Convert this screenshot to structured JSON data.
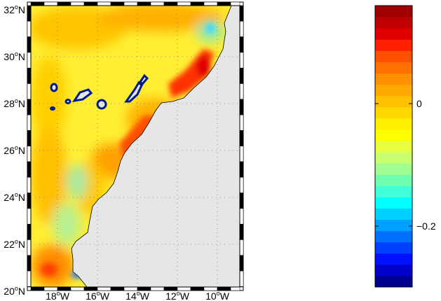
{
  "map": {
    "lat_labels": [
      {
        "deg": "32",
        "sup": "o",
        "hemi": "N"
      },
      {
        "deg": "30",
        "sup": "o",
        "hemi": "N"
      },
      {
        "deg": "28",
        "sup": "o",
        "hemi": "N"
      },
      {
        "deg": "26",
        "sup": "o",
        "hemi": "N"
      },
      {
        "deg": "24",
        "sup": "o",
        "hemi": "N"
      },
      {
        "deg": "22",
        "sup": "o",
        "hemi": "N"
      },
      {
        "deg": "20",
        "sup": "o",
        "hemi": "N"
      }
    ],
    "lon_labels": [
      {
        "deg": "18",
        "sup": "o",
        "hemi": "W"
      },
      {
        "deg": "16",
        "sup": "o",
        "hemi": "W"
      },
      {
        "deg": "14",
        "sup": "o",
        "hemi": "W"
      },
      {
        "deg": "12",
        "sup": "o",
        "hemi": "W"
      },
      {
        "deg": "10",
        "sup": "o",
        "hemi": "W"
      }
    ],
    "land_color": "#e6e6e6",
    "ocean_base_color": "#ffee33"
  },
  "colorbar": {
    "tick_labels": [
      "0",
      "−0.2"
    ],
    "colors": [
      "#000090",
      "#0000c8",
      "#0010ff",
      "#0040ff",
      "#0070ff",
      "#00a0ff",
      "#00d0ff",
      "#00ffff",
      "#40ffd8",
      "#70ffb0",
      "#a0ff90",
      "#c8ff70",
      "#e8ff40",
      "#ffff00",
      "#fff000",
      "#ffd800",
      "#ffc000",
      "#ffa800",
      "#ff9000",
      "#ff7000",
      "#ff5000",
      "#ff2000",
      "#e00000",
      "#c00000",
      "#a00000"
    ]
  }
}
